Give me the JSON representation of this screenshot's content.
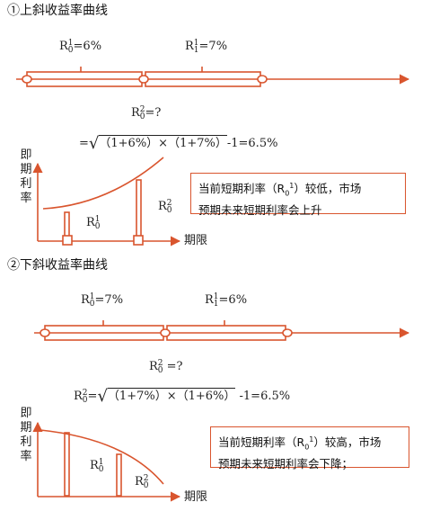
{
  "section1": {
    "title": "①上斜收益率曲线",
    "rate_a_base": "R",
    "rate_a_sup": "1",
    "rate_a_sub": "0",
    "rate_a_val": "=6%",
    "rate_b_base": "R",
    "rate_b_sup": "1",
    "rate_b_sub": "1",
    "rate_b_val": "=7%",
    "r2_base": "R",
    "r2_sup": "2",
    "r2_sub": "0",
    "r2_val": "=?",
    "formula_prefix": "=",
    "formula_body": "（1+6%）×（1+7%）",
    "formula_suffix": "-1=6.5%",
    "y_label": "即期利率",
    "x_label": "期限",
    "bar_small_base": "R",
    "bar_small_sup": "1",
    "bar_small_sub": "0",
    "bar_big_base": "R",
    "bar_big_sup": "2",
    "bar_big_sub": "0",
    "note_line1": "当前短期利率（R",
    "note_line1_sub": "0",
    "note_line1_sup": "1",
    "note_line1_end": "）较低，市场",
    "note_line2": "预期未来短期利率会上升"
  },
  "section2": {
    "title": "②下斜收益率曲线",
    "rate_a_base": "R",
    "rate_a_sup": "1",
    "rate_a_sub": "0",
    "rate_a_val": "=7%",
    "rate_b_base": "R",
    "rate_b_sup": "1",
    "rate_b_sub": "1",
    "rate_b_val": "=6%",
    "r2_base": "R",
    "r2_sup": "2",
    "r2_sub": "0",
    "r2_val": " =?",
    "formula_prefix_base": "R",
    "formula_prefix_sup": "2",
    "formula_prefix_sub": "0",
    "formula_prefix_eq": "=",
    "formula_body": "（1+7%）×（1+6%）",
    "formula_suffix": " -1=6.5%",
    "y_label": "即期利率",
    "x_label": "期限",
    "bar_big_base": "R",
    "bar_big_sup": "1",
    "bar_big_sub": "0",
    "bar_small_base": "R",
    "bar_small_sup": "2",
    "bar_small_sub": "0",
    "note_line1": "当前短期利率（R",
    "note_line1_sub": "0",
    "note_line1_sup": "1",
    "note_line1_end": "）较高，市场",
    "note_line2": "预期未来短期利率会下降；"
  },
  "colors": {
    "accent": "#d9552e",
    "text": "#222222"
  }
}
